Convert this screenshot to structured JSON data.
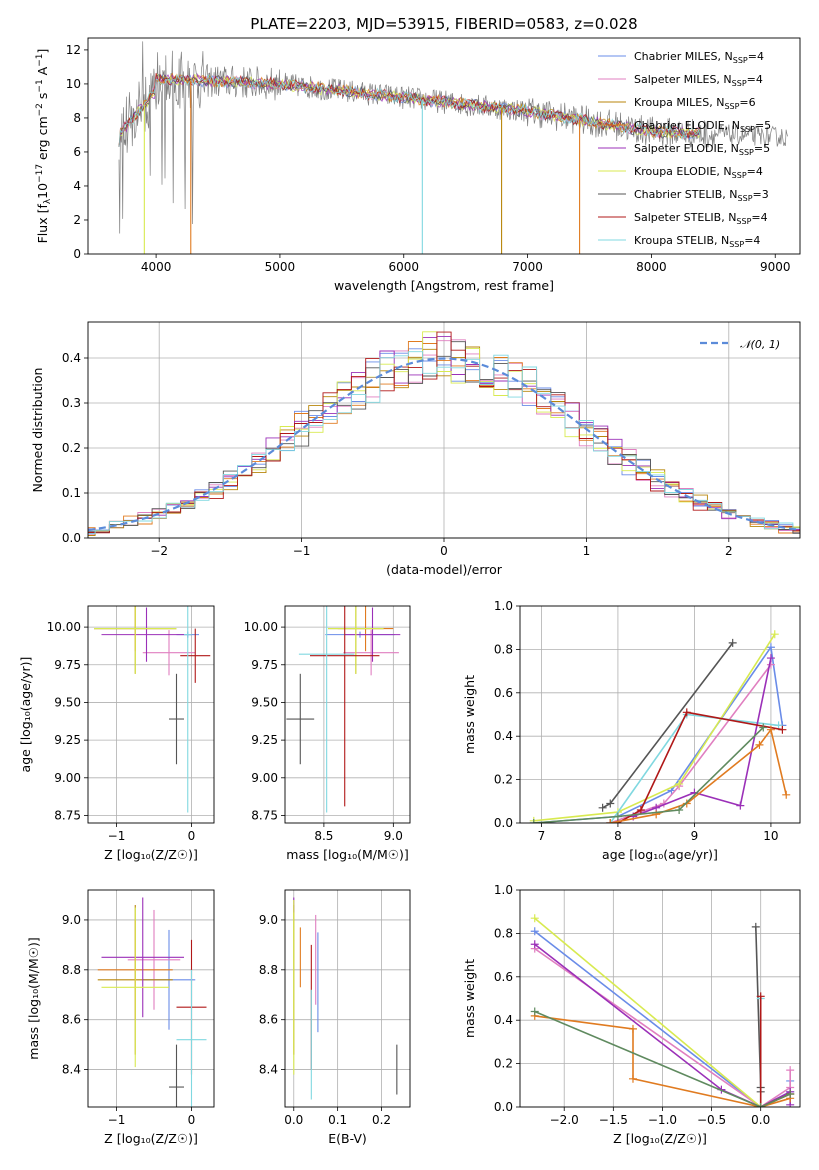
{
  "title": "PLATE=2203, MJD=53915, FIBERID=0583, z=0.028",
  "series": [
    {
      "name": "Chabrier MILES",
      "nssp": "4",
      "color": "#6a8ce8"
    },
    {
      "name": "Salpeter MILES",
      "nssp": "4",
      "color": "#e07fc0"
    },
    {
      "name": "Kroupa MILES",
      "nssp": "6",
      "color": "#b8860b"
    },
    {
      "name": "Chabrier ELODIE",
      "nssp": "5",
      "color": "#e07b20"
    },
    {
      "name": "Salpeter ELODIE",
      "nssp": "5",
      "color": "#9b30b8"
    },
    {
      "name": "Kroupa ELODIE",
      "nssp": "4",
      "color": "#d8ea50"
    },
    {
      "name": "Chabrier STELIB",
      "nssp": "3",
      "color": "#555555"
    },
    {
      "name": "Salpeter STELIB",
      "nssp": "4",
      "color": "#b01818"
    },
    {
      "name": "Kroupa STELIB",
      "nssp": "4",
      "color": "#80d8e0"
    }
  ],
  "extra_colors": {
    "data": "#808080",
    "green": "#5f8a5f",
    "gauss": "#5b8bd9"
  },
  "chart_data": [
    {
      "id": "spectrum",
      "type": "line",
      "xlabel": "wavelength [Angstrom, rest frame]",
      "ylabel_main": "Flux [f",
      "ylabel_sub": "λ",
      "ylabel_rest": "10",
      "ylabel_exp1": "−17",
      "ylabel_mid": " erg cm",
      "ylabel_exp2": "−2",
      "ylabel_mid2": " s",
      "ylabel_exp3": "−1",
      "ylabel_end": " A",
      "ylabel_exp4": "−1",
      "ylabel_close": "]",
      "xlim": [
        3450,
        9200
      ],
      "ylim": [
        0,
        12.7
      ],
      "xticks": [
        4000,
        5000,
        6000,
        7000,
        8000,
        9000
      ],
      "yticks": [
        0,
        2,
        4,
        6,
        8,
        10,
        12
      ],
      "legend_placement": "upper-right",
      "legend_subscript": "SSP",
      "legend_n": "N"
    },
    {
      "id": "residuals",
      "type": "line",
      "xlabel": "(data-model)/error",
      "ylabel": "Normed distribution",
      "xlim": [
        -2.5,
        2.5
      ],
      "ylim": [
        0,
        0.48
      ],
      "xticks": [
        -2,
        -1,
        0,
        1,
        2
      ],
      "yticks": [
        0.0,
        0.1,
        0.2,
        0.3,
        0.4
      ],
      "grid": true,
      "gauss_label": "𝒩(0, 1)",
      "gauss_legend_placement": "upper-right"
    },
    {
      "id": "age_vs_Z",
      "type": "scatter",
      "xlabel": "Z [log₁₀(Z/Z☉)]",
      "ylabel": "age  [log₁₀(age/yr)]",
      "xlim": [
        -1.38,
        0.3
      ],
      "ylim": [
        8.7,
        10.14
      ],
      "xticks": [
        -1,
        0
      ],
      "yticks": [
        8.75,
        9.0,
        9.25,
        9.5,
        9.75,
        10.0
      ],
      "grid": true,
      "points": [
        {
          "series": 0,
          "x": -0.05,
          "y": 9.95,
          "xerr": 0.15,
          "yerr": 0.02
        },
        {
          "series": 1,
          "x": -0.3,
          "y": 9.83,
          "xerr": 0.35,
          "yerr": 0.15
        },
        {
          "series": 2,
          "x": -0.75,
          "y": 9.99,
          "xerr": 0.55,
          "yerr": 0.3
        },
        {
          "series": 3,
          "x": -0.75,
          "y": 9.99,
          "xerr": 0.55,
          "yerr": 0.15
        },
        {
          "series": 4,
          "x": -0.6,
          "y": 9.95,
          "xerr": 0.6,
          "yerr": 0.18
        },
        {
          "series": 5,
          "x": -0.75,
          "y": 9.99,
          "xerr": 0.55,
          "yerr": 0.3
        },
        {
          "series": 6,
          "x": -0.2,
          "y": 9.39,
          "xerr": 0.1,
          "yerr": 0.3
        },
        {
          "series": 7,
          "x": 0.05,
          "y": 9.81,
          "xerr": 0.2,
          "yerr": 0.18
        },
        {
          "series": 8,
          "x": -0.05,
          "y": 9.95,
          "xerr": 0.05,
          "yerr": 1.18
        }
      ]
    },
    {
      "id": "age_vs_mass",
      "type": "scatter",
      "xlabel": "mass [log₁₀(M/M☉)]",
      "ylabel": "",
      "xlim": [
        8.22,
        9.12
      ],
      "ylim": [
        8.7,
        10.14
      ],
      "xticks": [
        8.5,
        9.0
      ],
      "yticks": [
        8.75,
        9.0,
        9.25,
        9.5,
        9.75,
        10.0
      ],
      "grid": true,
      "points": [
        {
          "series": 0,
          "x": 8.76,
          "y": 9.95,
          "xerr": 0.25,
          "yerr": 0.02
        },
        {
          "series": 1,
          "x": 8.84,
          "y": 9.83,
          "xerr": 0.2,
          "yerr": 0.15
        },
        {
          "series": 2,
          "x": 8.73,
          "y": 9.99,
          "xerr": 0.2,
          "yerr": 0.3
        },
        {
          "series": 3,
          "x": 8.8,
          "y": 9.99,
          "xerr": 0.2,
          "yerr": 0.15
        },
        {
          "series": 4,
          "x": 8.85,
          "y": 9.95,
          "xerr": 0.2,
          "yerr": 0.18
        },
        {
          "series": 5,
          "x": 8.73,
          "y": 9.99,
          "xerr": 0.2,
          "yerr": 0.3
        },
        {
          "series": 6,
          "x": 8.33,
          "y": 9.39,
          "xerr": 0.1,
          "yerr": 0.3
        },
        {
          "series": 7,
          "x": 8.65,
          "y": 9.81,
          "xerr": 0.25,
          "yerr": 1.0
        },
        {
          "series": 8,
          "x": 8.52,
          "y": 9.82,
          "xerr": 0.2,
          "yerr": 1.05
        }
      ]
    },
    {
      "id": "mass_weight_vs_age",
      "type": "line",
      "xlabel": "age  [log₁₀(age/yr)]",
      "ylabel": "mass weight",
      "xlim": [
        6.72,
        10.38
      ],
      "ylim": [
        0,
        1.0
      ],
      "xticks": [
        7,
        8,
        9,
        10
      ],
      "yticks": [
        0.0,
        0.2,
        0.4,
        0.6,
        0.8,
        1.0
      ],
      "grid": true,
      "lines": [
        {
          "series": 6,
          "x": [
            7.8,
            7.9,
            9.5
          ],
          "y": [
            0.07,
            0.09,
            0.83
          ]
        },
        {
          "series": 0,
          "x": [
            6.9,
            8.0,
            8.7,
            10.0,
            10.15
          ],
          "y": [
            0.0,
            0.03,
            0.15,
            0.81,
            0.45
          ]
        },
        {
          "series": 1,
          "x": [
            7.9,
            8.6,
            8.8,
            10.0
          ],
          "y": [
            0.0,
            0.09,
            0.17,
            0.73
          ]
        },
        {
          "series": 5,
          "x": [
            6.9,
            8.0,
            8.8,
            10.05
          ],
          "y": [
            0.01,
            0.05,
            0.18,
            0.87
          ]
        },
        {
          "series": 8,
          "x": [
            7.9,
            8.9,
            10.1
          ],
          "y": [
            0.0,
            0.5,
            0.45
          ]
        },
        {
          "series": 4,
          "x": [
            8.2,
            8.5,
            9.0,
            9.6,
            10.0
          ],
          "y": [
            0.03,
            0.07,
            0.14,
            0.08,
            0.76
          ]
        },
        {
          "series": 7,
          "x": [
            7.9,
            8.0,
            8.3,
            8.9,
            10.15
          ],
          "y": [
            0.0,
            0.0,
            0.06,
            0.51,
            0.43
          ]
        },
        {
          "series": 3,
          "x": [
            7.9,
            8.5,
            8.9,
            9.85,
            10.0,
            10.2
          ],
          "y": [
            0.0,
            0.04,
            0.09,
            0.36,
            0.43,
            0.13
          ]
        },
        {
          "series": "green",
          "x": [
            6.9,
            8.0,
            8.8,
            9.9
          ],
          "y": [
            0.0,
            0.03,
            0.06,
            0.44
          ]
        }
      ]
    },
    {
      "id": "mass_vs_Z",
      "type": "scatter",
      "xlabel": "Z [log₁₀(Z/Z☉)]",
      "ylabel": "mass [log₁₀(M/M☉)]",
      "xlim": [
        -1.38,
        0.3
      ],
      "ylim": [
        8.25,
        9.12
      ],
      "xticks": [
        -1,
        0
      ],
      "yticks": [
        8.4,
        8.6,
        8.8,
        9.0
      ],
      "grid": true,
      "points": [
        {
          "series": 0,
          "x": -0.3,
          "y": 8.76,
          "xerr": 0.35,
          "yerr": 0.2
        },
        {
          "series": 1,
          "x": -0.5,
          "y": 8.84,
          "xerr": 0.35,
          "yerr": 0.2
        },
        {
          "series": 2,
          "x": -0.75,
          "y": 8.76,
          "xerr": 0.5,
          "yerr": 0.3
        },
        {
          "series": 3,
          "x": -0.75,
          "y": 8.8,
          "xerr": 0.5,
          "yerr": 0.2
        },
        {
          "series": 4,
          "x": -0.65,
          "y": 8.85,
          "xerr": 0.55,
          "yerr": 0.24
        },
        {
          "series": 5,
          "x": -0.75,
          "y": 8.73,
          "xerr": 0.45,
          "yerr": 0.32
        },
        {
          "series": 6,
          "x": -0.2,
          "y": 8.33,
          "xerr": 0.1,
          "yerr": 0.17
        },
        {
          "series": 7,
          "x": 0.0,
          "y": 8.65,
          "xerr": 0.2,
          "yerr": 0.27
        },
        {
          "series": 8,
          "x": 0.0,
          "y": 8.52,
          "xerr": 0.2,
          "yerr": 0.28
        }
      ]
    },
    {
      "id": "mass_vs_EBV",
      "type": "scatter",
      "xlabel": "E(B-V)",
      "ylabel": "",
      "xlim": [
        -0.02,
        0.265
      ],
      "ylim": [
        8.25,
        9.12
      ],
      "xticks": [
        0.0,
        0.1,
        0.2
      ],
      "yticks": [
        8.4,
        8.6,
        8.8,
        9.0
      ],
      "grid": true,
      "points": [
        {
          "series": 0,
          "x": 0.055,
          "y": 8.75,
          "xerr": 0.0,
          "yerr": 0.2
        },
        {
          "series": 1,
          "x": 0.05,
          "y": 8.84,
          "xerr": 0.0,
          "yerr": 0.18
        },
        {
          "series": 2,
          "x": 0.0,
          "y": 8.76,
          "xerr": 0.0,
          "yerr": 0.3
        },
        {
          "series": 3,
          "x": 0.015,
          "y": 8.85,
          "xerr": 0.0,
          "yerr": 0.12
        },
        {
          "series": 4,
          "x": 0.0,
          "y": 9.06,
          "xerr": 0.0,
          "yerr": 0.03
        },
        {
          "series": 5,
          "x": 0.0,
          "y": 8.73,
          "xerr": 0.0,
          "yerr": 0.35
        },
        {
          "series": 6,
          "x": 0.235,
          "y": 8.4,
          "xerr": 0.0,
          "yerr": 0.1
        },
        {
          "series": 7,
          "x": 0.04,
          "y": 8.65,
          "xerr": 0.0,
          "yerr": 0.25
        },
        {
          "series": 8,
          "x": 0.04,
          "y": 8.5,
          "xerr": 0.0,
          "yerr": 0.22
        }
      ]
    },
    {
      "id": "mass_weight_vs_Z",
      "type": "line",
      "xlabel": "Z [log₁₀(Z/Z☉)]",
      "ylabel": "mass weight",
      "xlim": [
        -2.45,
        0.4
      ],
      "ylim": [
        0,
        1.0
      ],
      "xticks": [
        -2.0,
        -1.5,
        -1.0,
        -0.5,
        0.0
      ],
      "yticks": [
        0.0,
        0.2,
        0.4,
        0.6,
        0.8,
        1.0
      ],
      "grid": true,
      "lines": [
        {
          "series": 6,
          "x": [
            -0.05,
            0.0,
            0.0
          ],
          "y": [
            0.83,
            0.09,
            0.07
          ]
        },
        {
          "series": 0,
          "x": [
            -2.3,
            0.0,
            0.3,
            0.3
          ],
          "y": [
            0.81,
            0.0,
            0.07,
            0.12
          ]
        },
        {
          "series": 1,
          "x": [
            -2.3,
            0.0,
            0.3,
            0.3
          ],
          "y": [
            0.73,
            0.0,
            0.09,
            0.17
          ]
        },
        {
          "series": 5,
          "x": [
            -2.3,
            0.0,
            0.3
          ],
          "y": [
            0.87,
            0.0,
            0.06
          ]
        },
        {
          "series": 8,
          "x": [
            0.0,
            0.0
          ],
          "y": [
            0.5,
            0.0
          ]
        },
        {
          "series": 4,
          "x": [
            -2.3,
            -0.4,
            0.0,
            0.3,
            0.3
          ],
          "y": [
            0.75,
            0.08,
            0.0,
            0.07,
            0.01
          ]
        },
        {
          "series": 7,
          "x": [
            0.0,
            0.0,
            0.3
          ],
          "y": [
            0.51,
            0.0,
            0.06
          ]
        },
        {
          "series": 3,
          "x": [
            -2.3,
            -1.3,
            -1.3,
            0.0,
            0.3
          ],
          "y": [
            0.42,
            0.36,
            0.13,
            0.0,
            0.04
          ]
        },
        {
          "series": "green",
          "x": [
            -2.3,
            0.0,
            0.3
          ],
          "y": [
            0.44,
            0.0,
            0.06
          ]
        }
      ]
    }
  ]
}
